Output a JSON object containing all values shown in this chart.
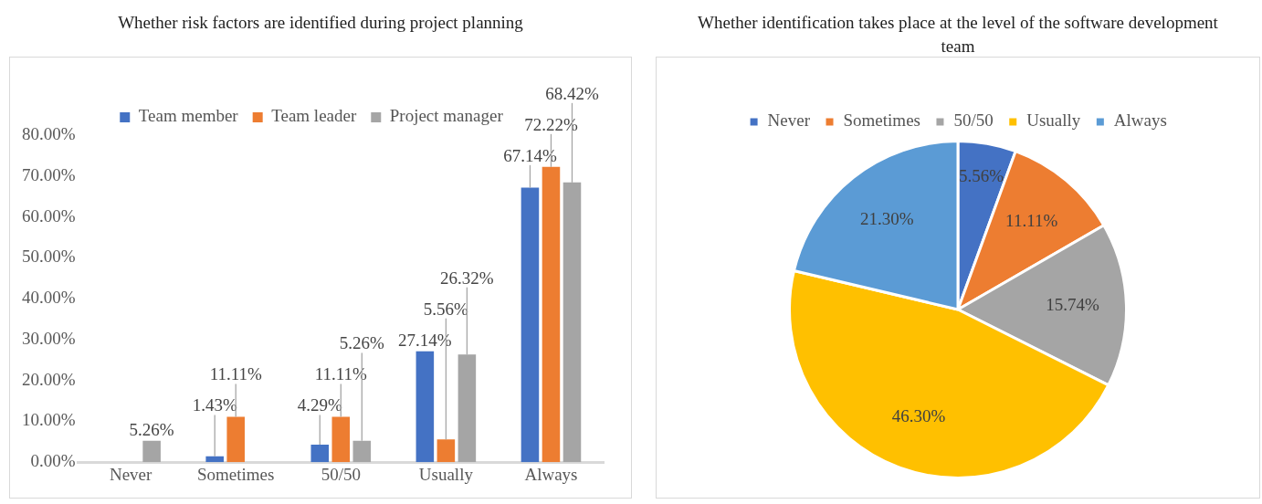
{
  "chart_data": [
    {
      "type": "bar",
      "title": "Whether risk factors are identified during project planning",
      "categories": [
        "Never",
        "Sometimes",
        "50/50",
        "Usually",
        "Always"
      ],
      "series": [
        {
          "name": "Team member",
          "color": "#4472c4",
          "values": [
            0,
            1.43,
            4.29,
            27.14,
            67.14
          ],
          "value_labels": [
            null,
            "1.43%",
            "4.29%",
            "27.14%",
            "67.14%"
          ]
        },
        {
          "name": "Team leader",
          "color": "#ed7d31",
          "values": [
            0,
            11.11,
            11.11,
            5.56,
            72.22
          ],
          "value_labels": [
            null,
            "11.11%",
            "11.11%",
            "5.56%",
            "72.22%"
          ]
        },
        {
          "name": "Project manager",
          "color": "#a5a5a5",
          "values": [
            5.26,
            0,
            5.26,
            26.32,
            68.42
          ],
          "value_labels": [
            "5.26%",
            null,
            "5.26%",
            "26.32%",
            "68.42%"
          ]
        }
      ],
      "ylim": [
        0,
        80
      ],
      "yticks": [
        {
          "value": 0,
          "label": "0.00%"
        },
        {
          "value": 10,
          "label": "10.00%"
        },
        {
          "value": 20,
          "label": "20.00%"
        },
        {
          "value": 30,
          "label": "30.00%"
        },
        {
          "value": 40,
          "label": "40.00%"
        },
        {
          "value": 50,
          "label": "50.00%"
        },
        {
          "value": 60,
          "label": "60.00%"
        },
        {
          "value": 70,
          "label": "70.00%"
        },
        {
          "value": 80,
          "label": "80.00%"
        }
      ],
      "grid": false,
      "legend": "top"
    },
    {
      "type": "pie",
      "title": "Whether identification takes place at the level of the software development team",
      "categories": [
        "Never",
        "Sometimes",
        "50/50",
        "Usually",
        "Always"
      ],
      "values": [
        5.56,
        11.11,
        15.74,
        46.3,
        21.3
      ],
      "colors": [
        "#4472c4",
        "#ed7d31",
        "#a5a5a5",
        "#ffc000",
        "#5b9bd5"
      ],
      "value_labels": [
        "5.56%",
        "11.11%",
        "15.74%",
        "46.30%",
        "21.30%"
      ],
      "legend": "top"
    }
  ]
}
